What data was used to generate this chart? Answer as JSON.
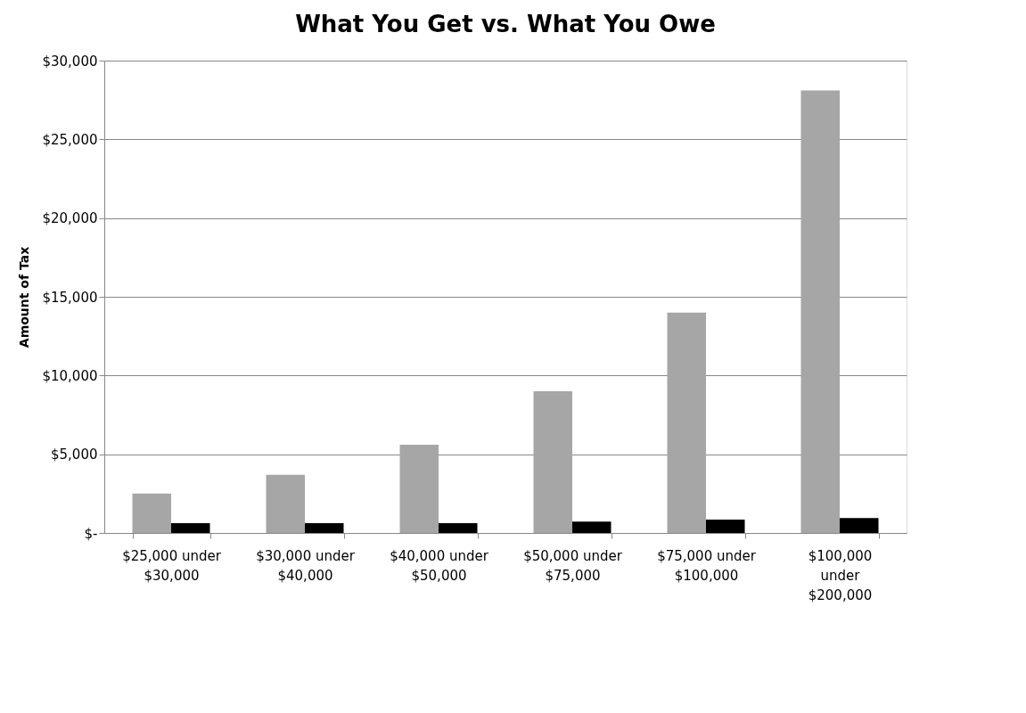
{
  "chart_data": {
    "type": "bar",
    "title": "What You Get vs. What You Owe",
    "ylabel": "Amount of Tax",
    "categories": [
      "$25,000 under\n$30,000",
      "$30,000 under\n$40,000",
      "$40,000 under\n$50,000",
      "$50,000 under\n$75,000",
      "$75,000 under\n$100,000",
      "$100,000\nunder\n$200,000"
    ],
    "series": [
      {
        "color": "#a6a6a6",
        "values": [
          2500,
          3700,
          5600,
          9000,
          14000,
          28100
        ]
      },
      {
        "color": "#000000",
        "values": [
          620,
          620,
          620,
          720,
          850,
          950
        ]
      }
    ],
    "ylim": [
      0,
      30000
    ],
    "yticks": [
      {
        "value": 0,
        "label": "$-"
      },
      {
        "value": 5000,
        "label": "$5,000"
      },
      {
        "value": 10000,
        "label": "$10,000"
      },
      {
        "value": 15000,
        "label": "$15,000"
      },
      {
        "value": 20000,
        "label": "$20,000"
      },
      {
        "value": 25000,
        "label": "$25,000"
      },
      {
        "value": 30000,
        "label": "$30,000"
      }
    ],
    "grid": "y",
    "legend": false
  }
}
